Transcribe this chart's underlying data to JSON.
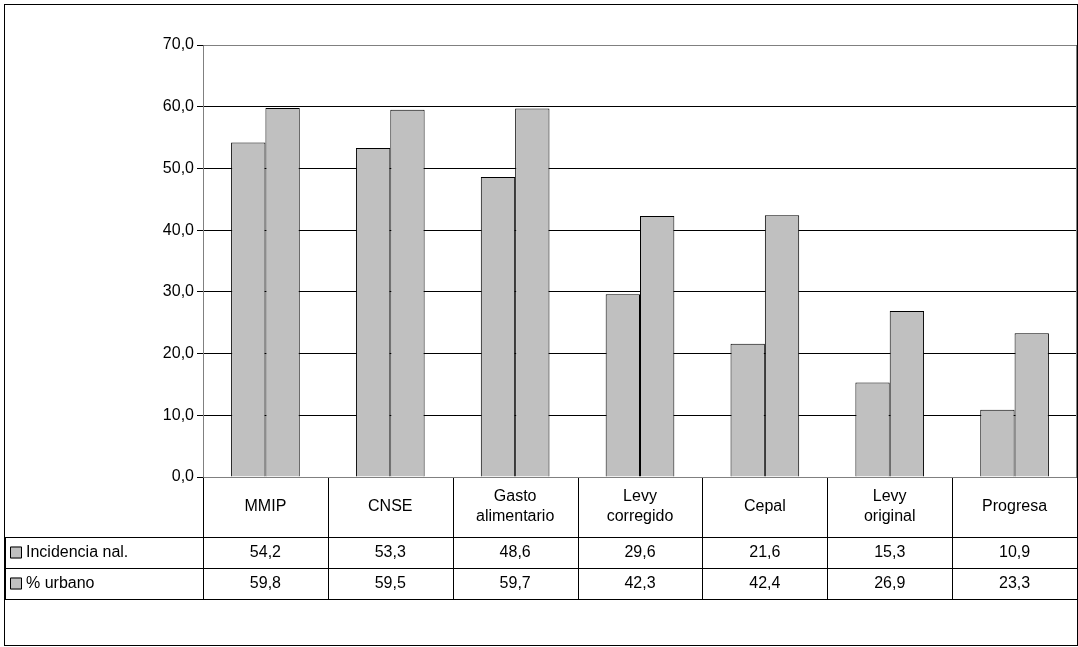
{
  "chart_data": {
    "type": "bar",
    "categories": [
      "MMIP",
      "CNSE",
      "Gasto alimentario",
      "Levy corregido",
      "Cepal",
      "Levy original",
      "Progresa"
    ],
    "series": [
      {
        "name": "Incidencia nal.",
        "color": "#c0c0c0",
        "values": [
          54.2,
          53.3,
          48.6,
          29.6,
          21.6,
          15.3,
          10.9
        ],
        "value_labels": [
          "54,2",
          "53,3",
          "48,6",
          "29,6",
          "21,6",
          "15,3",
          "10,9"
        ]
      },
      {
        "name": "% urbano",
        "color": "#c0c0c0",
        "values": [
          59.8,
          59.5,
          59.7,
          42.3,
          42.4,
          26.9,
          23.3
        ],
        "value_labels": [
          "59,8",
          "59,5",
          "59,7",
          "42,3",
          "42,4",
          "26,9",
          "23,3"
        ]
      }
    ],
    "ylim": [
      0,
      70
    ],
    "yticks": [
      {
        "value": 0,
        "label": "0,0"
      },
      {
        "value": 10,
        "label": "10,0"
      },
      {
        "value": 20,
        "label": "20,0"
      },
      {
        "value": 30,
        "label": "30,0"
      },
      {
        "value": 40,
        "label": "40,0"
      },
      {
        "value": 50,
        "label": "50,0"
      },
      {
        "value": 60,
        "label": "60,0"
      },
      {
        "value": 70,
        "label": "70,0"
      }
    ],
    "grid": "y",
    "legend": "bottom left"
  }
}
